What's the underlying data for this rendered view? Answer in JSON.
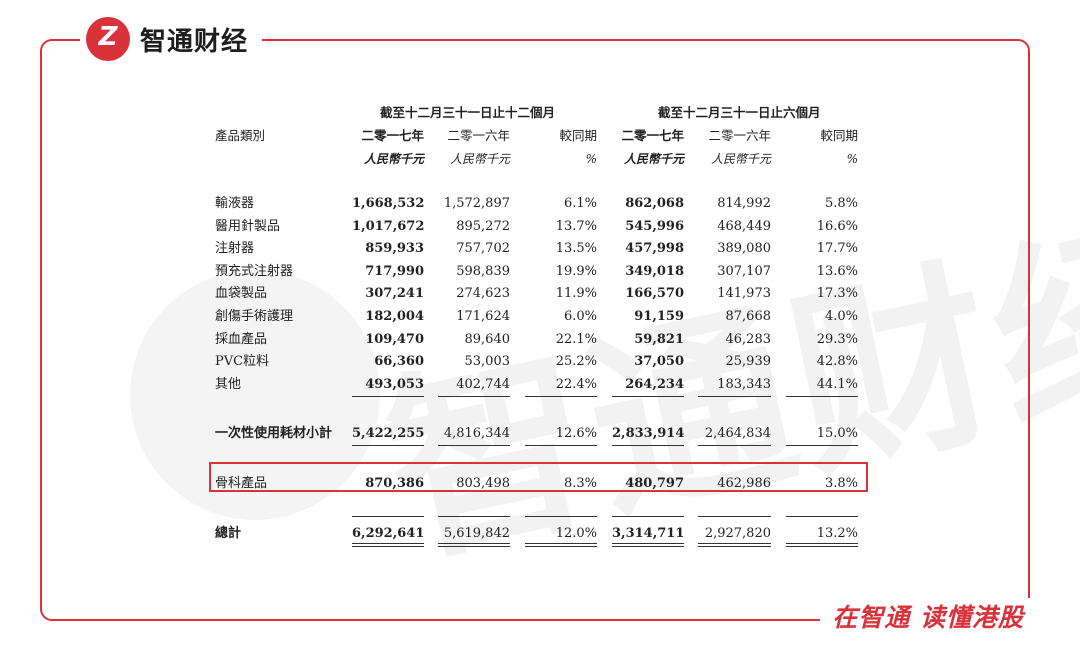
{
  "brand": {
    "name": "智通财经",
    "logo_letter": "Z",
    "slogan": "在智通  读懂港股",
    "accent_color": "#d9323a"
  },
  "watermark": {
    "text": "智通财经"
  },
  "table": {
    "period_headers": [
      "截至十二月三十一日止十二個月",
      "截至十二月三十一日止六個月"
    ],
    "category_header": "產品類別",
    "year_headers": [
      "二零一七年",
      "二零一六年",
      "較同期",
      "二零一七年",
      "二零一六年",
      "較同期"
    ],
    "unit_headers": [
      "人民幣千元",
      "人民幣千元",
      "%",
      "人民幣千元",
      "人民幣千元",
      "%"
    ],
    "rows": [
      {
        "label": "輸液器",
        "values": [
          "1,668,532",
          "1,572,897",
          "6.1%",
          "862,068",
          "814,992",
          "5.8%"
        ]
      },
      {
        "label": "醫用針製品",
        "values": [
          "1,017,672",
          "895,272",
          "13.7%",
          "545,996",
          "468,449",
          "16.6%"
        ]
      },
      {
        "label": "注射器",
        "values": [
          "859,933",
          "757,702",
          "13.5%",
          "457,998",
          "389,080",
          "17.7%"
        ]
      },
      {
        "label": "預充式注射器",
        "values": [
          "717,990",
          "598,839",
          "19.9%",
          "349,018",
          "307,107",
          "13.6%"
        ]
      },
      {
        "label": "血袋製品",
        "values": [
          "307,241",
          "274,623",
          "11.9%",
          "166,570",
          "141,973",
          "17.3%"
        ]
      },
      {
        "label": "創傷手術護理",
        "values": [
          "182,004",
          "171,624",
          "6.0%",
          "91,159",
          "87,668",
          "4.0%"
        ]
      },
      {
        "label": "採血產品",
        "values": [
          "109,470",
          "89,640",
          "22.1%",
          "59,821",
          "46,283",
          "29.3%"
        ]
      },
      {
        "label": "PVC粒料",
        "values": [
          "66,360",
          "53,003",
          "25.2%",
          "37,050",
          "25,939",
          "42.8%"
        ]
      },
      {
        "label": "其他",
        "values": [
          "493,053",
          "402,744",
          "22.4%",
          "264,234",
          "183,343",
          "44.1%"
        ]
      }
    ],
    "subtotal": {
      "label": "一次性使用耗材小計",
      "values": [
        "5,422,255",
        "4,816,344",
        "12.6%",
        "2,833,914",
        "2,464,834",
        "15.0%"
      ]
    },
    "orthopedic": {
      "label": "骨科產品",
      "values": [
        "870,386",
        "803,498",
        "8.3%",
        "480,797",
        "462,986",
        "3.8%"
      ]
    },
    "total": {
      "label": "總計",
      "values": [
        "6,292,641",
        "5,619,842",
        "12.0%",
        "3,314,711",
        "2,927,820",
        "13.2%"
      ]
    }
  }
}
